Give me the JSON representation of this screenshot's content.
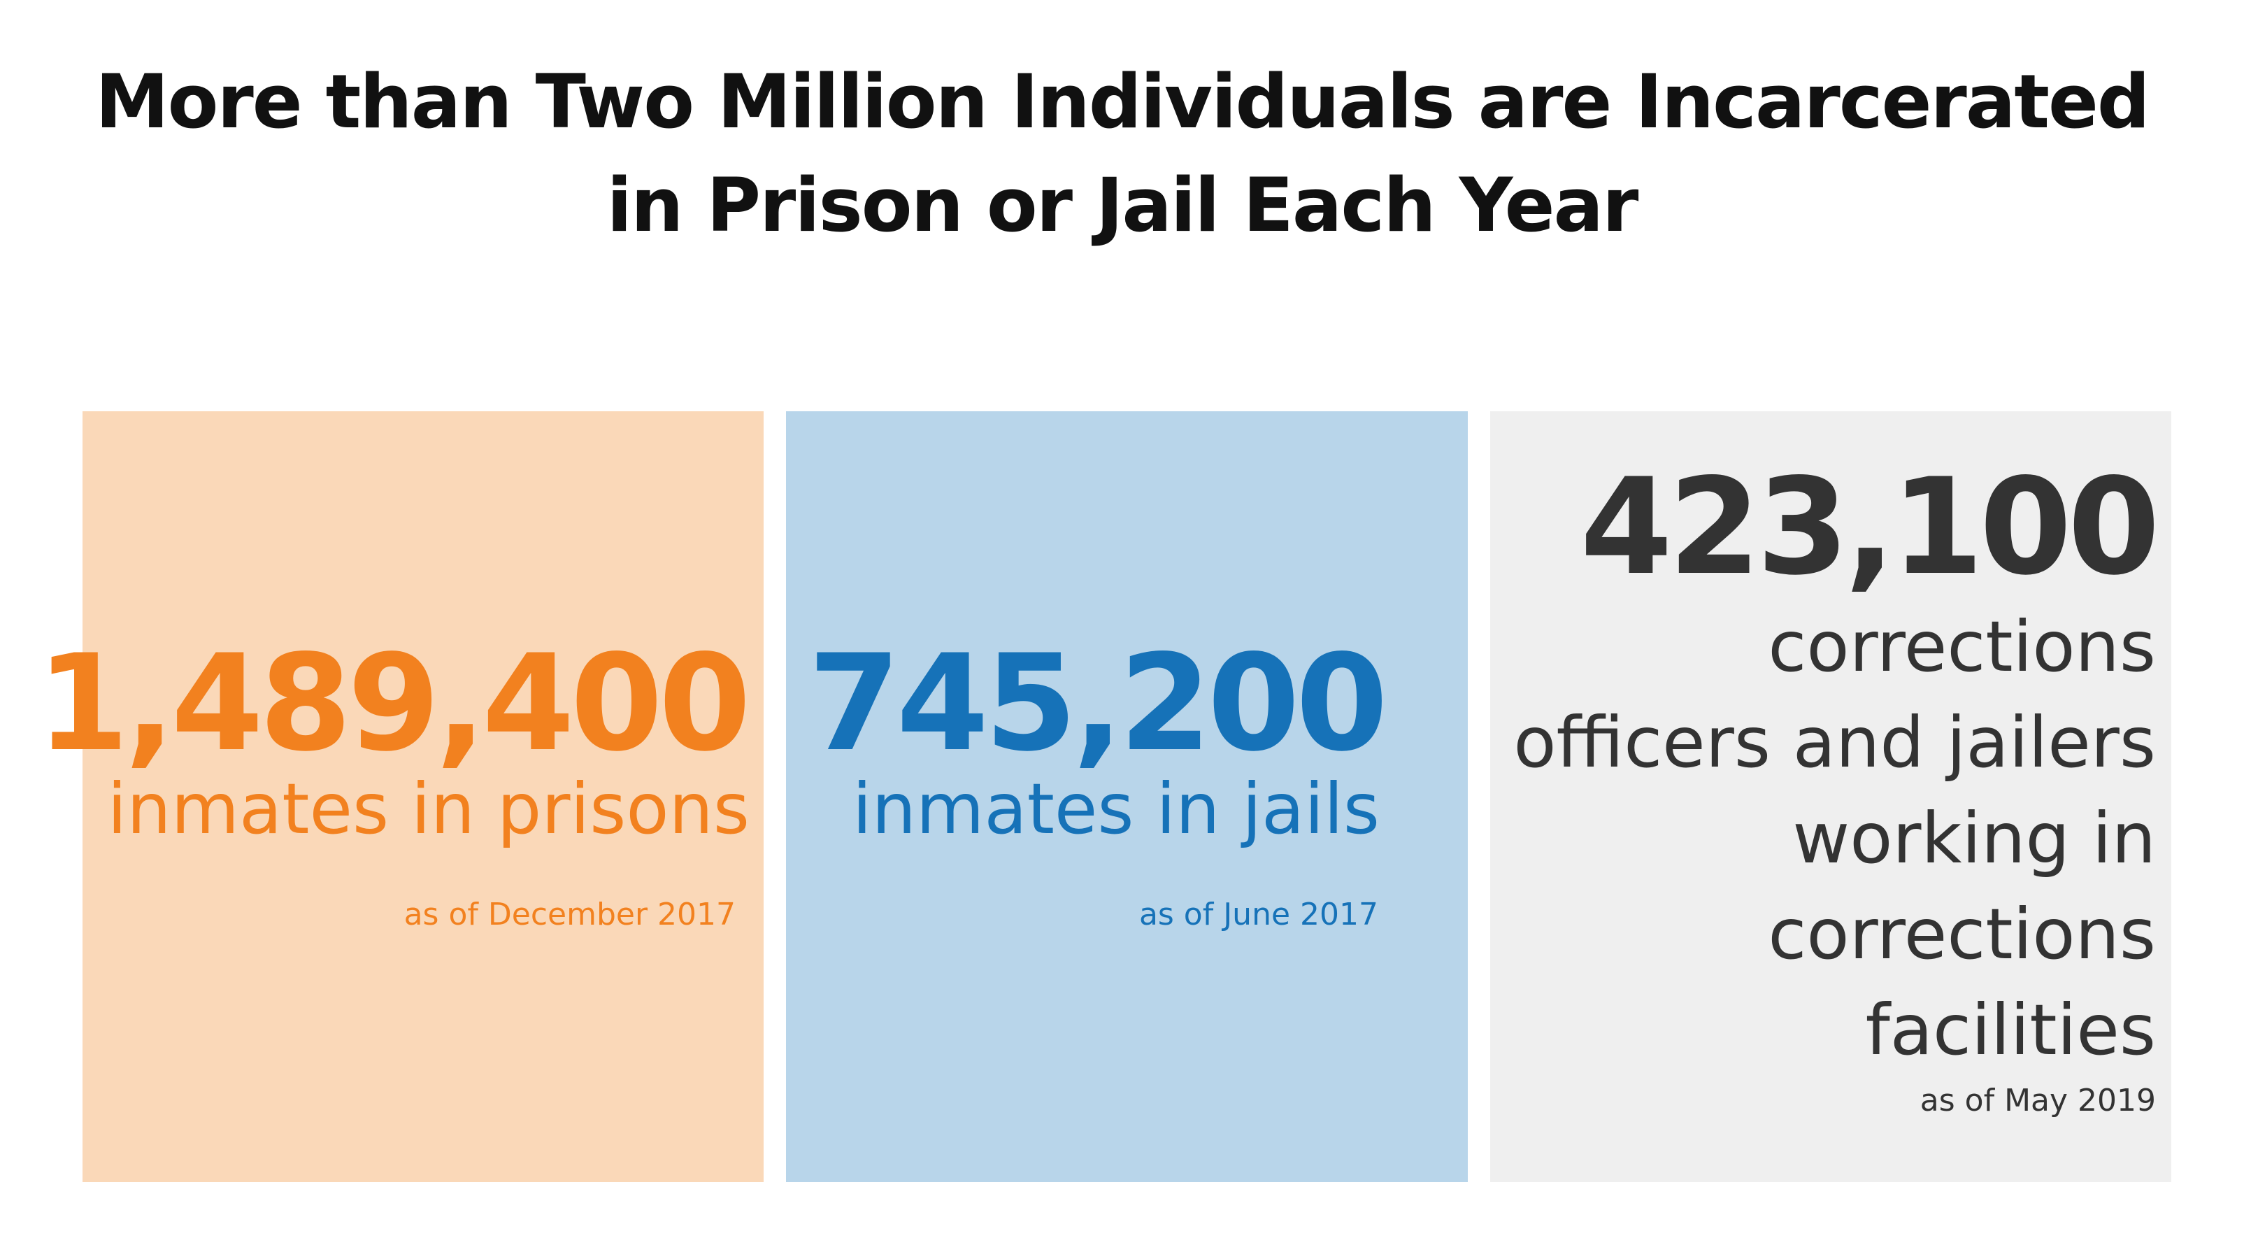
{
  "title": {
    "line1": "More than Two Million Individuals are Incarcerated",
    "line2": "in Prison or Jail Each Year"
  },
  "cards": [
    {
      "number": "1,489,400",
      "label": "inmates in prisons",
      "date": "as of December 2017",
      "color": "#f2811f",
      "background": "#fad8b8"
    },
    {
      "number": "745,200",
      "label": "inmates in jails",
      "date": "as of June 2017",
      "color": "#1672b8",
      "background": "#b8d5ea"
    },
    {
      "number": "423,100",
      "label_lines": [
        "corrections",
        "officers and jailers",
        "working in",
        "corrections",
        "facilities"
      ],
      "date": "as of May 2019",
      "color": "#333333",
      "background": "#efefef"
    }
  ]
}
